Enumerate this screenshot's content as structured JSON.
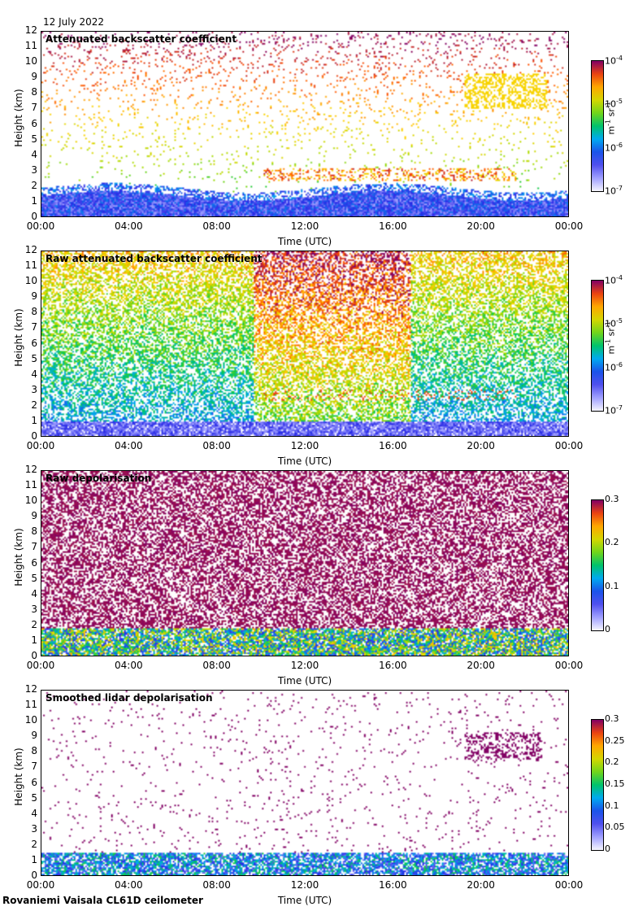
{
  "date": "12 July 2022",
  "footer": "Rovaniemi Vaisala CL61D ceilometer",
  "xlabel": "Time (UTC)",
  "ylabel": "Height (km)",
  "chart_data": [
    {
      "type": "heatmap",
      "title": "Attenuated backscatter coefficient",
      "xlabel": "Time (UTC)",
      "ylabel": "Height (km)",
      "x_ticks": [
        "00:00",
        "04:00",
        "08:00",
        "12:00",
        "16:00",
        "20:00",
        "00:00"
      ],
      "y_ticks": [
        "0",
        "1",
        "2",
        "3",
        "4",
        "5",
        "6",
        "7",
        "8",
        "9",
        "10",
        "11",
        "12"
      ],
      "ylim": [
        0,
        12
      ],
      "colorbar": {
        "scale": "log",
        "ticks": [
          "10-7",
          "10-6",
          "10-5",
          "10-4"
        ],
        "unit": "m-1 sr-1"
      },
      "features": {
        "boundary_layer_km": 1.5,
        "clouds": "scattered 1.5–3 km from 09:00, high cloud 7–9 km after 19:00"
      }
    },
    {
      "type": "heatmap",
      "title": "Raw attenuated backscatter coefficient",
      "xlabel": "Time (UTC)",
      "ylabel": "Height (km)",
      "x_ticks": [
        "00:00",
        "04:00",
        "08:00",
        "12:00",
        "16:00",
        "20:00",
        "00:00"
      ],
      "y_ticks": [
        "0",
        "1",
        "2",
        "3",
        "4",
        "5",
        "6",
        "7",
        "8",
        "9",
        "10",
        "11",
        "12"
      ],
      "ylim": [
        0,
        12
      ],
      "colorbar": {
        "scale": "log",
        "ticks": [
          "10-7",
          "10-6",
          "10-5",
          "10-4"
        ],
        "unit": "m-1 sr-1"
      }
    },
    {
      "type": "heatmap",
      "title": "Raw depolarisation",
      "xlabel": "Time (UTC)",
      "ylabel": "Height (km)",
      "x_ticks": [
        "00:00",
        "04:00",
        "08:00",
        "12:00",
        "16:00",
        "20:00",
        "00:00"
      ],
      "y_ticks": [
        "0",
        "1",
        "2",
        "3",
        "4",
        "5",
        "6",
        "7",
        "8",
        "9",
        "10",
        "11",
        "12"
      ],
      "ylim": [
        0,
        12
      ],
      "colorbar": {
        "scale": "linear",
        "range": [
          0,
          0.3
        ],
        "ticks": [
          "0",
          "0.1",
          "0.2",
          "0.3"
        ]
      }
    },
    {
      "type": "heatmap",
      "title": "Smoothed lidar depolarisation",
      "xlabel": "Time (UTC)",
      "ylabel": "Height (km)",
      "x_ticks": [
        "00:00",
        "04:00",
        "08:00",
        "12:00",
        "16:00",
        "20:00",
        "00:00"
      ],
      "y_ticks": [
        "0",
        "1",
        "2",
        "3",
        "4",
        "5",
        "6",
        "7",
        "8",
        "9",
        "10",
        "11",
        "12"
      ],
      "ylim": [
        0,
        12
      ],
      "colorbar": {
        "scale": "linear",
        "range": [
          0,
          0.3
        ],
        "ticks": [
          "0",
          "0.05",
          "0.1",
          "0.15",
          "0.2",
          "0.25",
          "0.3"
        ]
      }
    }
  ]
}
